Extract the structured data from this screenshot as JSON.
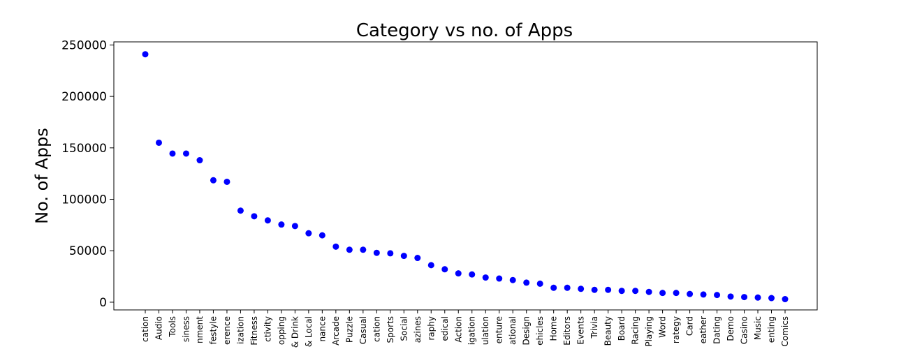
{
  "chart_data": {
    "type": "scatter",
    "title": "Category vs no. of Apps",
    "xlabel": "",
    "ylabel": "No. of Apps",
    "ylim": [
      -7500,
      253000
    ],
    "yticks": [
      0,
      50000,
      100000,
      150000,
      200000,
      250000
    ],
    "yticklabels": [
      "0",
      "50000",
      "100000",
      "150000",
      "200000",
      "250000"
    ],
    "grid": false,
    "marker_color": "#0000ff",
    "categories": [
      "cation",
      "Audio",
      "Tools",
      "siness",
      "nment",
      "festyle",
      "erence",
      "ization",
      "Fitness",
      "ctivity",
      "opping",
      "& Drink",
      "& Local",
      "nance",
      "Arcade",
      "Puzzle",
      "Casual",
      "cation",
      "Sports",
      "Social",
      "azines",
      "raphy",
      "edical",
      "Action",
      "igation",
      "ulation",
      "enture",
      "ational",
      "Design",
      "ehicles",
      "Home",
      "Editors",
      "Events",
      "Trivia",
      "Beauty",
      "Board",
      "Racing",
      "Playing",
      "Word",
      "rategy",
      "Card",
      "eather",
      "Dating",
      "Demo",
      "Casino",
      "Music",
      "enting",
      "Comics"
    ],
    "values": [
      241000,
      155000,
      144500,
      144500,
      138000,
      118500,
      117000,
      89000,
      83500,
      79500,
      75500,
      74000,
      67000,
      65000,
      54000,
      51000,
      51000,
      48000,
      47500,
      45000,
      43000,
      36000,
      32000,
      28000,
      27000,
      24000,
      23000,
      21500,
      19000,
      18000,
      14000,
      14000,
      13000,
      12000,
      12000,
      11000,
      11000,
      10000,
      9000,
      9000,
      8000,
      7500,
      7000,
      5500,
      5000,
      4500,
      4000,
      3000
    ]
  }
}
